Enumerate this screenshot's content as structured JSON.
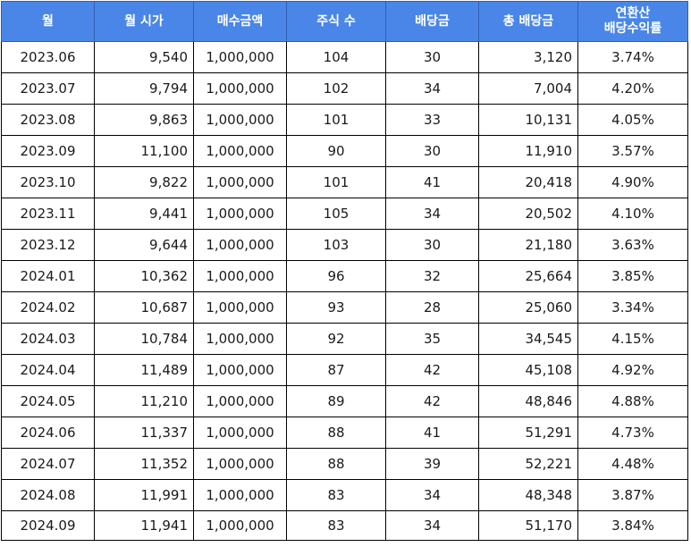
{
  "table": {
    "headers": [
      "월",
      "월 시가",
      "매수금액",
      "주식 수",
      "배당금",
      "총 배당금",
      "연환산\n배당수익률"
    ],
    "rows": [
      [
        "2023.06",
        "9,540",
        "1,000,000",
        "104",
        "30",
        "3,120",
        "3.74%"
      ],
      [
        "2023.07",
        "9,794",
        "1,000,000",
        "102",
        "34",
        "7,004",
        "4.20%"
      ],
      [
        "2023.08",
        "9,863",
        "1,000,000",
        "101",
        "33",
        "10,131",
        "4.05%"
      ],
      [
        "2023.09",
        "11,100",
        "1,000,000",
        "90",
        "30",
        "11,910",
        "3.57%"
      ],
      [
        "2023.10",
        "9,822",
        "1,000,000",
        "101",
        "41",
        "20,418",
        "4.90%"
      ],
      [
        "2023.11",
        "9,441",
        "1,000,000",
        "105",
        "34",
        "20,502",
        "4.10%"
      ],
      [
        "2023.12",
        "9,644",
        "1,000,000",
        "103",
        "30",
        "21,180",
        "3.63%"
      ],
      [
        "2024.01",
        "10,362",
        "1,000,000",
        "96",
        "32",
        "25,664",
        "3.85%"
      ],
      [
        "2024.02",
        "10,687",
        "1,000,000",
        "93",
        "28",
        "25,060",
        "3.34%"
      ],
      [
        "2024.03",
        "10,784",
        "1,000,000",
        "92",
        "35",
        "34,545",
        "4.15%"
      ],
      [
        "2024.04",
        "11,489",
        "1,000,000",
        "87",
        "42",
        "45,108",
        "4.92%"
      ],
      [
        "2024.05",
        "11,210",
        "1,000,000",
        "89",
        "42",
        "48,846",
        "4.88%"
      ],
      [
        "2024.06",
        "11,337",
        "1,000,000",
        "88",
        "41",
        "51,291",
        "4.73%"
      ],
      [
        "2024.07",
        "11,352",
        "1,000,000",
        "88",
        "39",
        "52,221",
        "4.48%"
      ],
      [
        "2024.08",
        "11,991",
        "1,000,000",
        "83",
        "34",
        "48,348",
        "3.87%"
      ],
      [
        "2024.09",
        "11,941",
        "1,000,000",
        "83",
        "34",
        "51,170",
        "3.84%"
      ]
    ]
  },
  "colors": {
    "header_bg": "#4a86e8",
    "header_text": "#ffffff",
    "grid_line": "#000000"
  }
}
